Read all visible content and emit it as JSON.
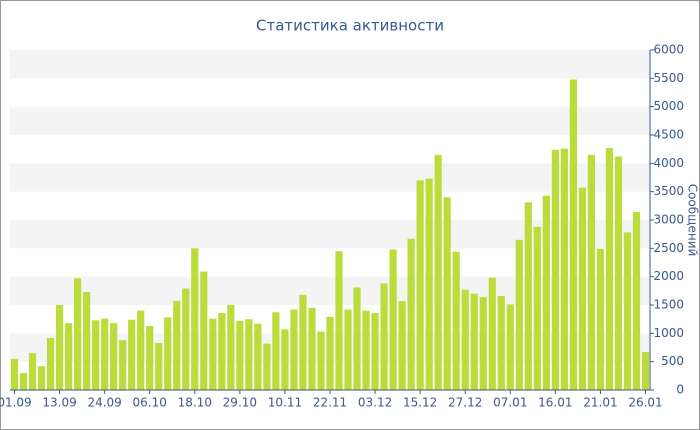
{
  "chart_data": {
    "type": "bar",
    "title": "Статистика активности",
    "y_label": "Сообщений",
    "categories": [
      "01.09",
      null,
      null,
      null,
      null,
      "13.09",
      null,
      null,
      null,
      null,
      "24.09",
      null,
      null,
      null,
      null,
      "06.10",
      null,
      null,
      null,
      null,
      "18.10",
      null,
      null,
      null,
      null,
      "29.10",
      null,
      null,
      null,
      null,
      "10.11",
      null,
      null,
      null,
      null,
      "22.11",
      null,
      null,
      null,
      null,
      "03.12",
      null,
      null,
      null,
      null,
      "15.12",
      null,
      null,
      null,
      null,
      "27.12",
      null,
      null,
      null,
      null,
      "07.01",
      null,
      null,
      null,
      null,
      "16.01",
      null,
      null,
      null,
      null,
      "21.01",
      null,
      null,
      null,
      null,
      "26.01"
    ],
    "values": [
      550,
      300,
      650,
      420,
      920,
      1500,
      1180,
      1970,
      1730,
      1230,
      1260,
      1180,
      880,
      1240,
      1400,
      1130,
      830,
      1280,
      1570,
      1790,
      2500,
      2090,
      1260,
      1360,
      1500,
      1220,
      1250,
      1170,
      820,
      1370,
      1070,
      1420,
      1680,
      1450,
      1030,
      1290,
      2450,
      1420,
      1810,
      1400,
      1360,
      1880,
      2480,
      1570,
      2670,
      3700,
      3730,
      4150,
      3400,
      2440,
      1770,
      1700,
      1640,
      1980,
      1660,
      1510,
      2650,
      3310,
      2880,
      3430,
      4240,
      4260,
      5480,
      3570,
      4150,
      2490,
      4270,
      4120,
      2780,
      3140,
      670
    ],
    "color": "#bcdc3c",
    "ylim": [
      0,
      6000
    ],
    "yticks": [
      0,
      500,
      1000,
      1500,
      2000,
      2500,
      3000,
      3500,
      4000,
      4500,
      5000,
      5500,
      6000
    ],
    "grid": "bands",
    "y_axis_side": "right"
  }
}
